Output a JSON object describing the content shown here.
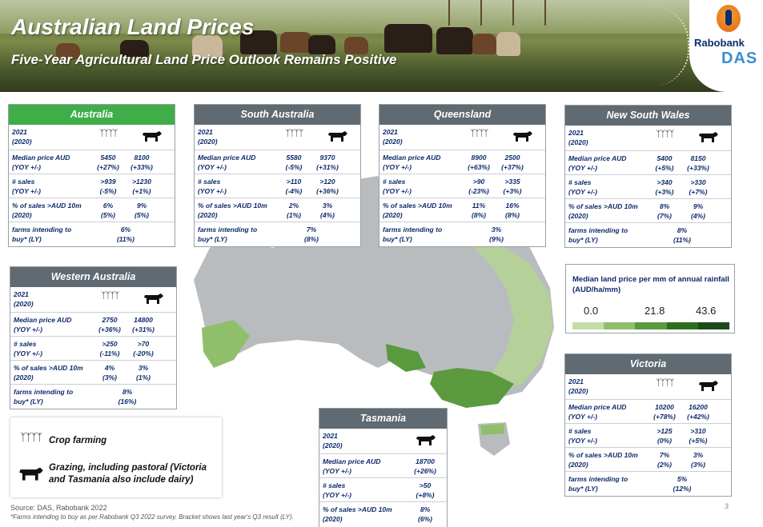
{
  "header": {
    "title": "Australian Land Prices",
    "subtitle": "Five-Year Agricultural Land Price Outlook Remains Positive"
  },
  "logo": {
    "bank": "Rabobank",
    "brand": "DAS"
  },
  "cards": {
    "australia": {
      "name": "Australia",
      "year": "2021",
      "prev": "(2020)",
      "med_l1": "Median price AUD",
      "med_l2": "(YOY +/-)",
      "med_c": "5450",
      "med_cc": "(+27%)",
      "med_g": "8100",
      "med_gc": "(+33%)",
      "sal_l1": "# sales",
      "sal_l2": "(YOY +/-)",
      "sal_c": ">939",
      "sal_cc": "(-5%)",
      "sal_g": ">1230",
      "sal_gc": "(+1%)",
      "pct_l1": "% of sales >AUD 10m",
      "pct_l2": "(2020)",
      "pct_c": "6%",
      "pct_cc": "(5%)",
      "pct_g": "9%",
      "pct_gc": "(5%)",
      "far_l1": "farms intending to",
      "far_l2": "buy* (LY)",
      "far_v": "6%",
      "far_vp": "(11%)"
    },
    "sa": {
      "name": "South Australia",
      "year": "2021",
      "prev": "(2020)",
      "med_l1": "Median price AUD",
      "med_l2": "(YOY +/-)",
      "med_c": "5580",
      "med_cc": "(-5%)",
      "med_g": "9370",
      "med_gc": "(+31%)",
      "sal_l1": "# sales",
      "sal_l2": "(YOY +/-)",
      "sal_c": ">110",
      "sal_cc": "(-4%)",
      "sal_g": ">120",
      "sal_gc": "(+36%)",
      "pct_l1": "% of sales >AUD 10m",
      "pct_l2": "(2020)",
      "pct_c": "2%",
      "pct_cc": "(1%)",
      "pct_g": "3%",
      "pct_gc": "(4%)",
      "far_l1": "farms intending to",
      "far_l2": "buy* (LY)",
      "far_v": "7%",
      "far_vp": "(8%)"
    },
    "qld": {
      "name": "Queensland",
      "year": "2021",
      "prev": "(2020)",
      "med_l1": "Median price AUD",
      "med_l2": "(YOY +/-)",
      "med_c": "8900",
      "med_cc": "(+63%)",
      "med_g": "2500",
      "med_gc": "(+37%)",
      "sal_l1": "# sales",
      "sal_l2": "(YOY +/-)",
      "sal_c": ">90",
      "sal_cc": "(-23%)",
      "sal_g": ">335",
      "sal_gc": "(+3%)",
      "pct_l1": "% of sales >AUD 10m",
      "pct_l2": "(2020)",
      "pct_c": "11%",
      "pct_cc": "(8%)",
      "pct_g": "16%",
      "pct_gc": "(8%)",
      "far_l1": "farms intending to",
      "far_l2": "buy* (LY)",
      "far_v": "3%",
      "far_vp": "(9%)"
    },
    "nsw": {
      "name": "New South Wales",
      "year": "2021",
      "prev": "(2020)",
      "med_l1": "Median price AUD",
      "med_l2": "(YOY +/-)",
      "med_c": "5400",
      "med_cc": "(+5%)",
      "med_g": "8150",
      "med_gc": "(+33%)",
      "sal_l1": "# sales",
      "sal_l2": "(YOY +/-)",
      "sal_c": ">340",
      "sal_cc": "(+3%)",
      "sal_g": ">330",
      "sal_gc": "(+7%)",
      "pct_l1": "% of sales >AUD 10m",
      "pct_l2": "(2020)",
      "pct_c": "8%",
      "pct_cc": "(7%)",
      "pct_g": "9%",
      "pct_gc": "(4%)",
      "far_l1": "farms intending to",
      "far_l2": "buy* (LY)",
      "far_v": "8%",
      "far_vp": "(11%)"
    },
    "wa": {
      "name": "Western Australia",
      "year": "2021",
      "prev": "(2020)",
      "med_l1": "Median price AUD",
      "med_l2": "(YOY +/-)",
      "med_c": "2750",
      "med_cc": "(+36%)",
      "med_g": "14800",
      "med_gc": "(+31%)",
      "sal_l1": "# sales",
      "sal_l2": "(YOY +/-)",
      "sal_c": ">250",
      "sal_cc": "(-11%)",
      "sal_g": ">70",
      "sal_gc": "(-20%)",
      "pct_l1": "% of sales >AUD 10m",
      "pct_l2": "(2020)",
      "pct_c": "4%",
      "pct_cc": "(3%)",
      "pct_g": "3%",
      "pct_gc": "(1%)",
      "far_l1": "farms intending to",
      "far_l2": "buy* (LY)",
      "far_v": "8%",
      "far_vp": "(16%)"
    },
    "vic": {
      "name": "Victoria",
      "year": "2021",
      "prev": "(2020)",
      "med_l1": "Median price AUD",
      "med_l2": "(YOY +/-)",
      "med_c": "10200",
      "med_cc": "(+78%)",
      "med_g": "16200",
      "med_gc": "(+42%)",
      "sal_l1": "# sales",
      "sal_l2": "(YOY +/-)",
      "sal_c": ">125",
      "sal_cc": "(0%)",
      "sal_g": ">310",
      "sal_gc": "(+5%)",
      "pct_l1": "% of sales >AUD 10m",
      "pct_l2": "(2020)",
      "pct_c": "7%",
      "pct_cc": "(2%)",
      "pct_g": "3%",
      "pct_gc": "(3%)",
      "far_l1": "farms intending to",
      "far_l2": "buy* (LY)",
      "far_v": "5%",
      "far_vp": "(12%)"
    },
    "tas": {
      "name": "Tasmania",
      "year": "2021",
      "prev": "(2020)",
      "med_l1": "Median price AUD",
      "med_l2": "(YOY +/-)",
      "med_g": "18700",
      "med_gc": "(+26%)",
      "sal_l1": "# sales",
      "sal_l2": "(YOY +/-)",
      "sal_g": ">50",
      "sal_gc": "(+8%)",
      "pct_l1": "% of sales >AUD 10m",
      "pct_l2": "(2020)",
      "pct_g": "8%",
      "pct_gc": "(6%)"
    }
  },
  "legend": {
    "title": "Median land price per mm of annual rainfall (AUD/ha/mm)",
    "min": "0.0",
    "mid": "21.8",
    "max": "43.6",
    "colors": [
      "#c5dca8",
      "#8fbf6a",
      "#5a9a3e",
      "#2f6e22",
      "#1d4a16"
    ]
  },
  "key": {
    "crop": "Crop farming",
    "graze_l1": "Grazing, including pastoral (Victoria",
    "graze_l2": "and Tasmania also include dairy)"
  },
  "footer": {
    "source": "Source: DAS, Rabobank 2022",
    "note": "*Farms intending to buy as per Rabobank Q3 2022 survey. Bracket shows last year's Q3 result (LY).",
    "page": "3"
  },
  "icons": {
    "crop": "wheat-icon",
    "grazing": "cow-icon"
  }
}
